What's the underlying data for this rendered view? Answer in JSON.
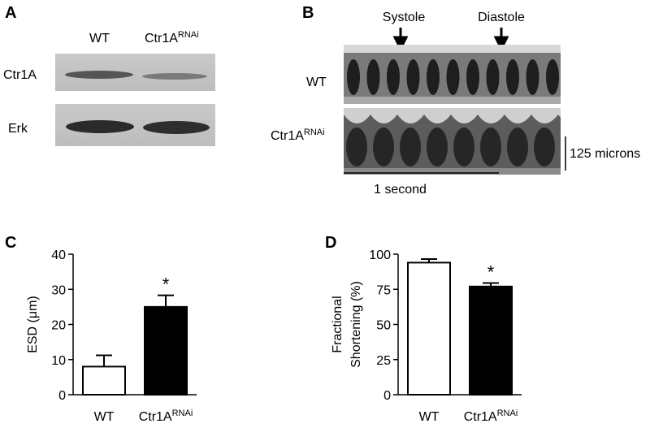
{
  "panels": {
    "a": {
      "label": "A",
      "columns": [
        "WT",
        "Ctr1A"
      ],
      "column_superscripts": {
        "1": "RNAi"
      },
      "rows": [
        "Ctr1A",
        "Erk"
      ]
    },
    "b": {
      "label": "B",
      "markers": [
        "Systole",
        "Diastole"
      ],
      "rows": [
        "WT",
        "Ctr1A"
      ],
      "row_superscripts": {
        "1": "RNAi"
      },
      "scale_y": "125 microns",
      "scale_x": "1 second"
    }
  },
  "chart_data": [
    {
      "panel": "C",
      "type": "bar",
      "ylabel": [
        "ESD (μm)"
      ],
      "categories": [
        "WT",
        "Ctr1A"
      ],
      "category_superscripts": {
        "1": "RNAi"
      },
      "values": [
        8,
        25
      ],
      "errors": [
        3.2,
        3.3
      ],
      "colors": [
        "#ffffff",
        "#000000"
      ],
      "significance": [
        null,
        "*"
      ],
      "ylim": [
        0,
        40
      ],
      "yticks": [
        0,
        10,
        20,
        30,
        40
      ]
    },
    {
      "panel": "D",
      "type": "bar",
      "ylabel": [
        "Fractional",
        "Shortening (%)"
      ],
      "categories": [
        "WT",
        "Ctr1A"
      ],
      "category_superscripts": {
        "1": "RNAi"
      },
      "values": [
        94,
        77
      ],
      "errors": [
        2.5,
        2.5
      ],
      "colors": [
        "#ffffff",
        "#000000"
      ],
      "significance": [
        null,
        "*"
      ],
      "ylim": [
        0,
        100
      ],
      "yticks": [
        0,
        25,
        50,
        75,
        100
      ]
    }
  ]
}
